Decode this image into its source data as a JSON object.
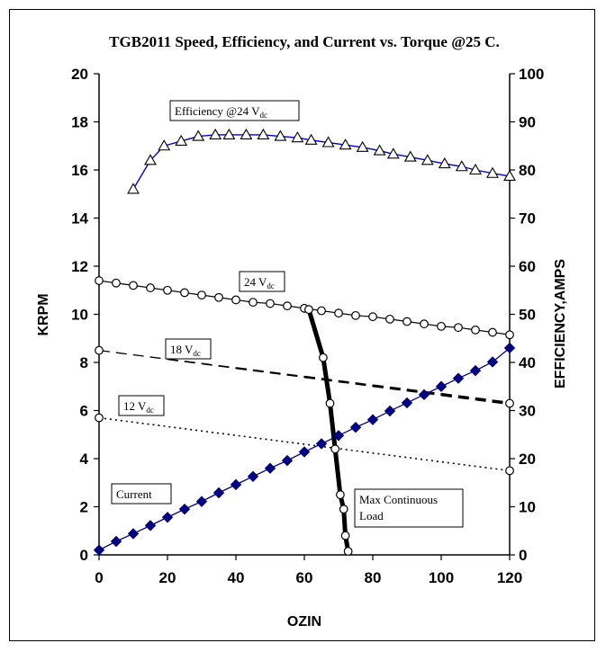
{
  "chart_data": {
    "type": "line",
    "title": "TGB2011 Speed, Efficiency, and Current vs. Torque @25 C.",
    "xlabel": "OZIN",
    "ylabel_left": "KRPM",
    "ylabel_right": "EFFICIENCY,AMPS",
    "xlim": [
      0,
      120
    ],
    "ylim_left": [
      0,
      20
    ],
    "ylim_right": [
      0,
      100
    ],
    "x_ticks": [
      "0",
      "20",
      "40",
      "60",
      "80",
      "100",
      "120"
    ],
    "y_left_ticks": [
      "0",
      "2",
      "4",
      "6",
      "8",
      "10",
      "12",
      "14",
      "16",
      "18",
      "20"
    ],
    "y_right_ticks": [
      "0",
      "10",
      "20",
      "30",
      "40",
      "50",
      "60",
      "70",
      "80",
      "90",
      "100"
    ],
    "grid": false,
    "colors": {
      "efficiency": "#0000cc",
      "current": "#000080",
      "black": "#000000"
    },
    "series": [
      {
        "key": "efficiency",
        "axis": "right",
        "marker": "triangle",
        "label_main": "Efficiency @24 V",
        "label_sub": "dc",
        "x": [
          10,
          15,
          19,
          24,
          29,
          34,
          38,
          43,
          48,
          53,
          58,
          62,
          67,
          72,
          77,
          82,
          86,
          91,
          96,
          101,
          106,
          110,
          115,
          120
        ],
        "y": [
          76,
          82,
          85,
          86,
          87,
          87.3,
          87.3,
          87.3,
          87.3,
          87,
          86.7,
          86.2,
          85.7,
          85.2,
          84.7,
          84,
          83.3,
          82.7,
          82,
          81.3,
          80.7,
          80,
          79.3,
          78.7
        ]
      },
      {
        "key": "v24",
        "axis": "left",
        "marker": "circle",
        "label_main": "24 V",
        "label_sub": "dc",
        "x": [
          0,
          5,
          10,
          15,
          20,
          25,
          30,
          35,
          40,
          45,
          50,
          55,
          60,
          65,
          70,
          75,
          80,
          85,
          90,
          95,
          100,
          105,
          110,
          115,
          120
        ],
        "y": [
          11.4,
          11.3,
          11.2,
          11.1,
          11.0,
          10.9,
          10.8,
          10.7,
          10.6,
          10.5,
          10.45,
          10.35,
          10.25,
          10.15,
          10.05,
          9.95,
          9.9,
          9.8,
          9.7,
          9.6,
          9.5,
          9.45,
          9.35,
          9.25,
          9.15
        ]
      },
      {
        "key": "v18",
        "axis": "left",
        "marker": "none",
        "label_main": "18 V",
        "label_sub": "dc",
        "x": [
          0,
          120
        ],
        "y": [
          8.5,
          6.3
        ]
      },
      {
        "key": "v12",
        "axis": "left",
        "marker": "none",
        "label_main": "12 V",
        "label_sub": "dc",
        "x": [
          0,
          120
        ],
        "y": [
          5.7,
          3.5
        ]
      },
      {
        "key": "current",
        "axis": "right",
        "marker": "diamond",
        "label_main": "Current",
        "label_sub": "",
        "x": [
          0,
          5,
          10,
          15,
          20,
          25,
          30,
          35,
          40,
          45,
          50,
          55,
          60,
          65,
          70,
          75,
          80,
          85,
          90,
          95,
          100,
          105,
          110,
          115,
          120
        ],
        "y": [
          1,
          2.8,
          4.4,
          6.1,
          7.8,
          9.5,
          11.1,
          12.9,
          14.6,
          16.3,
          18,
          19.6,
          21.4,
          23.1,
          24.8,
          26.5,
          28.1,
          29.9,
          31.6,
          33.3,
          35,
          36.7,
          38.3,
          40.1,
          43
        ]
      },
      {
        "key": "maxload",
        "axis": "left",
        "marker": "circle",
        "label_main": "Max Continuous",
        "label_line2": "Load",
        "x": [
          61.3,
          65.5,
          67.5,
          69,
          70.5,
          71.5,
          72,
          72.8
        ],
        "y": [
          10.2,
          8.2,
          6.3,
          4.4,
          2.5,
          1.9,
          0.8,
          0.15
        ]
      }
    ],
    "end_markers": [
      {
        "series": "v18",
        "x": 0,
        "y": 8.5
      },
      {
        "series": "v18",
        "x": 120,
        "y": 6.3
      },
      {
        "series": "v12",
        "x": 0,
        "y": 5.7
      },
      {
        "series": "v12",
        "x": 120,
        "y": 3.5
      }
    ]
  }
}
